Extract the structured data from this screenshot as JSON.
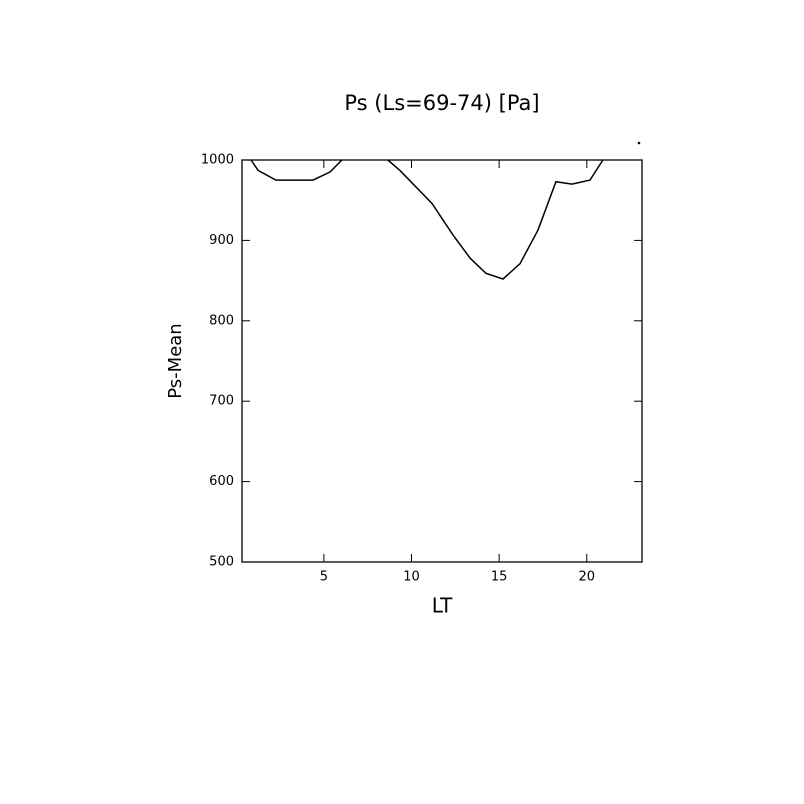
{
  "chart_data": {
    "type": "line",
    "title": "Ps (Ls=69-74) [Pa]",
    "x_label": "LT",
    "y_label": "Ps-Mean",
    "x": [
      0.85,
      1.25,
      2.27,
      4.38,
      5.35,
      6.03,
      7.3,
      8.65,
      9.34,
      11.17,
      12.36,
      13.34,
      14.25,
      15.22,
      16.19,
      17.22,
      18.24,
      19.16,
      20.18,
      20.92
    ],
    "series": [
      {
        "name": "Ps-Mean",
        "color": "#000000",
        "values": [
          1000,
          987,
          975,
          975,
          985,
          1000,
          null,
          1000,
          987,
          946,
          907,
          878,
          859,
          852,
          871,
          913,
          973,
          970,
          975,
          1000
        ]
      }
    ],
    "xlim": [
      0.33,
      23.15
    ],
    "xticks": [
      5,
      10,
      15,
      20
    ],
    "ylim": [
      500,
      1000
    ],
    "yticks": [
      500,
      600,
      700,
      800,
      900,
      1000
    ]
  }
}
